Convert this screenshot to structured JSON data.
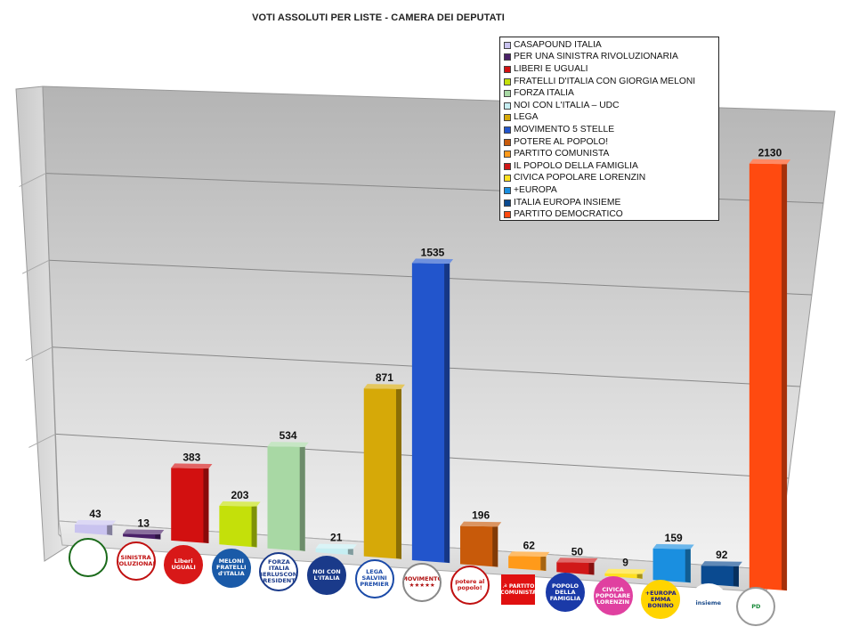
{
  "chart_data": {
    "type": "bar",
    "title": "VOTI ASSOLUTI PER LISTE - CAMERA DEI DEPUTATI",
    "categories": [
      "CASAPOUND ITALIA",
      "PER UNA SINISTRA RIVOLUZIONARIA",
      "LIBERI E UGUALI",
      "FRATELLI D'ITALIA CON GIORGIA MELONI",
      "FORZA ITALIA",
      "NOI CON L'ITALIA – UDC",
      "LEGA",
      "MOVIMENTO 5 STELLE",
      "POTERE AL POPOLO!",
      "PARTITO COMUNISTA",
      "IL POPOLO DELLA FAMIGLIA",
      "CIVICA POPOLARE LORENZIN",
      "+EUROPA",
      "ITALIA EUROPA INSIEME",
      "PARTITO DEMOCRATICO"
    ],
    "values": [
      43,
      13,
      383,
      203,
      534,
      21,
      871,
      1535,
      196,
      62,
      50,
      9,
      159,
      92,
      2130
    ],
    "colors": [
      "#c9c3ef",
      "#4a2068",
      "#d21010",
      "#c4e00a",
      "#a8d8a4",
      "#c6eef2",
      "#d6a908",
      "#2255cc",
      "#c85a0a",
      "#ff9a1a",
      "#d01818",
      "#ffe020",
      "#1a8fe0",
      "#0a4a90",
      "#ff4a10"
    ],
    "ylim": [
      0,
      2500
    ],
    "grid": true,
    "legend_position": "top-right",
    "xlabel": "",
    "ylabel": ""
  },
  "logos": [
    {
      "text": "",
      "bg": "#ffffff",
      "fg": "#111111",
      "ring": "#1a6a1a",
      "icon": "casapound-turtle-icon"
    },
    {
      "text": "SINISTRA RIVOLUZIONARIA",
      "bg": "#ffffff",
      "fg": "#c01010",
      "ring": "#c01010",
      "icon": "sinistra-rivoluzionaria-logo-icon"
    },
    {
      "text": "Liberi UGUALI",
      "bg": "#d81818",
      "fg": "#ffffff",
      "ring": "#d81818",
      "icon": "liberi-uguali-logo-icon"
    },
    {
      "text": "MELONI FRATELLI d'ITALIA",
      "bg": "#1a5aa8",
      "fg": "#ffffff",
      "ring": "#1a5aa8",
      "icon": "fratelli-italia-logo-icon"
    },
    {
      "text": "FORZA ITALIA BERLUSCONI PRESIDENTE",
      "bg": "#ffffff",
      "fg": "#1a3a8a",
      "ring": "#1a3a8a",
      "icon": "forza-italia-logo-icon"
    },
    {
      "text": "NOI CON L'ITALIA",
      "bg": "#1a3a8a",
      "fg": "#ffffff",
      "ring": "#1a3a8a",
      "icon": "noi-con-italia-logo-icon"
    },
    {
      "text": "LEGA SALVINI PREMIER",
      "bg": "#ffffff",
      "fg": "#1a4aa8",
      "ring": "#1a4aa8",
      "icon": "lega-logo-icon"
    },
    {
      "text": "MOVIMENTO ★★★★★",
      "bg": "#ffffff",
      "fg": "#b01010",
      "ring": "#888888",
      "icon": "movimento-5-stelle-logo-icon"
    },
    {
      "text": "potere al popolo!",
      "bg": "#ffffff",
      "fg": "#c01010",
      "ring": "#c01010",
      "icon": "potere-al-popolo-logo-icon"
    },
    {
      "text": "☭ PARTITO COMUNISTA",
      "bg": "#e01010",
      "fg": "#ffffff",
      "ring": "#e01010",
      "icon": "partito-comunista-logo-icon"
    },
    {
      "text": "POPOLO DELLA FAMIGLIA",
      "bg": "#1a3aa8",
      "fg": "#ffffff",
      "ring": "#1a3aa8",
      "icon": "popolo-famiglia-logo-icon"
    },
    {
      "text": "CIVICA POPOLARE LORENZIN",
      "bg": "#e040a0",
      "fg": "#ffffff",
      "ring": "#e040a0",
      "icon": "civica-popolare-logo-icon"
    },
    {
      "text": "+EUROPA EMMA BONINO",
      "bg": "#ffd400",
      "fg": "#1a1a8a",
      "ring": "#ffd400",
      "icon": "piu-europa-logo-icon"
    },
    {
      "text": "insieme",
      "bg": "#ffffff",
      "fg": "#1a4a8a",
      "ring": "#ffffff",
      "icon": "insieme-logo-icon"
    },
    {
      "text": "PD",
      "bg": "#ffffff",
      "fg": "#1a8a3a",
      "ring": "#999999",
      "icon": "partito-democratico-logo-icon"
    }
  ]
}
